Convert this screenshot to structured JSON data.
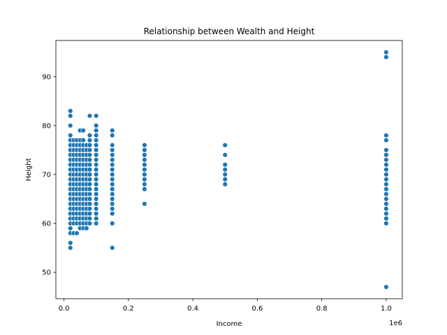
{
  "chart_data": {
    "type": "scatter",
    "title": "Relationship between Wealth and Height",
    "xlabel": "Income",
    "ylabel": "Height",
    "x_offset_label": "1e6",
    "xlim": [
      -25000,
      1050000
    ],
    "ylim": [
      44.6,
      97.4
    ],
    "x_ticks": [
      0,
      200000,
      400000,
      600000,
      800000,
      1000000
    ],
    "x_tick_labels": [
      "0.0",
      "0.2",
      "0.4",
      "0.6",
      "0.8",
      "1.0"
    ],
    "y_ticks": [
      50,
      60,
      70,
      80,
      90
    ],
    "y_tick_labels": [
      "50",
      "60",
      "70",
      "80",
      "90"
    ],
    "grid": false,
    "marker_color": "#1f77b4",
    "groups": [
      {
        "x": 20000,
        "y": [
          55,
          56,
          58,
          59,
          60,
          61,
          62,
          63,
          64,
          65,
          66,
          67,
          68,
          69,
          70,
          71,
          72,
          73,
          74,
          75,
          76,
          77,
          78,
          80,
          82,
          83
        ]
      },
      {
        "x": 30000,
        "y": [
          58,
          60,
          61,
          62,
          63,
          64,
          65,
          66,
          67,
          68,
          69,
          70,
          71,
          72,
          73,
          74,
          75,
          76,
          77
        ]
      },
      {
        "x": 40000,
        "y": [
          58,
          60,
          61,
          62,
          63,
          64,
          65,
          66,
          67,
          68,
          69,
          70,
          71,
          72,
          73,
          74,
          75,
          76,
          77
        ]
      },
      {
        "x": 50000,
        "y": [
          59,
          60,
          61,
          62,
          63,
          64,
          65,
          66,
          67,
          68,
          69,
          70,
          71,
          72,
          73,
          74,
          75,
          76,
          77,
          79
        ]
      },
      {
        "x": 60000,
        "y": [
          59,
          60,
          61,
          62,
          63,
          64,
          65,
          66,
          67,
          68,
          69,
          70,
          71,
          72,
          73,
          74,
          75,
          76,
          77,
          79
        ]
      },
      {
        "x": 70000,
        "y": [
          59,
          60,
          61,
          62,
          63,
          64,
          65,
          66,
          67,
          68,
          69,
          70,
          71,
          72,
          73,
          74,
          75,
          76
        ]
      },
      {
        "x": 80000,
        "y": [
          60,
          61,
          62,
          63,
          64,
          65,
          66,
          67,
          68,
          69,
          70,
          71,
          72,
          73,
          74,
          75,
          76,
          77,
          78,
          82
        ]
      },
      {
        "x": 100000,
        "y": [
          60,
          61,
          62,
          63,
          64,
          65,
          66,
          67,
          68,
          69,
          70,
          71,
          72,
          73,
          74,
          75,
          76,
          77,
          78,
          79,
          80,
          82
        ]
      },
      {
        "x": 150000,
        "y": [
          55,
          60,
          62,
          63,
          64,
          65,
          66,
          67,
          68,
          69,
          70,
          71,
          72,
          73,
          74,
          75,
          76,
          78,
          79
        ]
      },
      {
        "x": 250000,
        "y": [
          64,
          67,
          68,
          69,
          70,
          71,
          72,
          73,
          74,
          75,
          76
        ]
      },
      {
        "x": 500000,
        "y": [
          68,
          69,
          70,
          71,
          72,
          74,
          76
        ]
      },
      {
        "x": 1000000,
        "y": [
          47,
          60,
          61,
          62,
          63,
          64,
          65,
          66,
          67,
          68,
          69,
          70,
          71,
          72,
          73,
          74,
          75,
          77,
          78,
          94,
          95
        ]
      }
    ]
  }
}
